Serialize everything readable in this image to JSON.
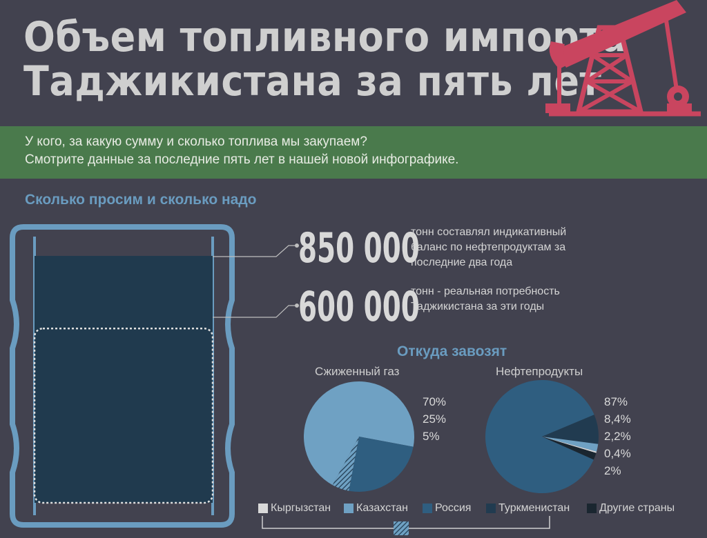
{
  "header": {
    "title_line1": "Объем топливного импорта",
    "title_line2": "Таджикистана за пять лет"
  },
  "intro": {
    "line1": "У кого, за какую сумму и сколько топлива мы закупаем?",
    "line2": "Смотрите данные за последние пять лет в нашей новой инфографике."
  },
  "section1": {
    "title": "Сколько просим и сколько надо",
    "stat1": {
      "value": "850 000",
      "desc": "тонн составлял индикативный баланс по нефтепродуктам за последние два года"
    },
    "stat2": {
      "value": "600 000",
      "desc": "тонн  - реальная потребность Таджикистана за эти годы"
    }
  },
  "section2": {
    "title": "Откуда завозят"
  },
  "colors": {
    "background": "#42424f",
    "band": "#4a7a4c",
    "rig": "#c9455f",
    "accent_text": "#6a9cc0",
    "kyrgyzstan": "#d9d9d9",
    "kazakhstan": "#6fa1c3",
    "russia": "#2f5e80",
    "turkmenistan": "#213b50",
    "other": "#1a2630"
  },
  "chart_data": [
    {
      "type": "bar",
      "categories": [
        "850 000",
        "600 000"
      ],
      "values": [
        850000,
        600000
      ],
      "title": "Сколько просим и сколько надо"
    },
    {
      "type": "pie",
      "title": "Сжиженный газ",
      "labels": [
        "Казахстан",
        "Россия",
        "Туркменистан"
      ],
      "values": [
        70,
        25,
        5
      ],
      "value_labels": [
        "70%",
        "25%",
        "5%"
      ]
    },
    {
      "type": "pie",
      "title": "Нефтепродукты",
      "labels": [
        "Россия",
        "Туркменистан",
        "Казахстан",
        "Кыргызстан",
        "Другие страны"
      ],
      "values": [
        87,
        8.4,
        2.2,
        0.4,
        2
      ],
      "value_labels": [
        "87%",
        "8,4%",
        "2,2%",
        "0,4%",
        "2%"
      ]
    }
  ],
  "legend": [
    {
      "label": "Кыргызстан",
      "color": "#d9d9d9"
    },
    {
      "label": "Казахстан",
      "color": "#6fa1c3"
    },
    {
      "label": "Россия",
      "color": "#2f5e80"
    },
    {
      "label": "Туркменистан",
      "color": "#213b50"
    },
    {
      "label": "Другие страны",
      "color": "#1a2630"
    }
  ]
}
